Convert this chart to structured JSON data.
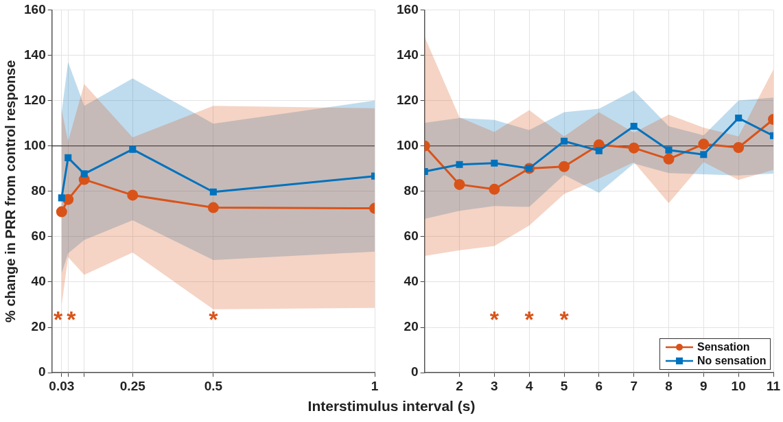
{
  "chart_data": [
    {
      "type": "line",
      "xlabel": "Interstimulus interval (s)",
      "ylabel": "% change in PRR from control response",
      "xlim": [
        0,
        1
      ],
      "xticks": [
        {
          "value": 0.03,
          "label": "0.03"
        },
        {
          "value": 0.05,
          "label": null
        },
        {
          "value": 0.1,
          "label": null
        },
        0.25,
        0.5,
        1
      ],
      "ylim": [
        0,
        160
      ],
      "yticks": [
        0,
        20,
        40,
        60,
        80,
        100,
        120,
        140,
        160
      ],
      "grid": true,
      "legend": false,
      "line_style": "solid",
      "x": [
        0.03,
        0.05,
        0.1,
        0.25,
        0.5,
        1
      ],
      "series": [
        {
          "color": "#d95319",
          "marker": "circle",
          "values": [
            71,
            76.4,
            85.2,
            78.3,
            72.8,
            72.5
          ],
          "lower": [
            29.7,
            51,
            43.2,
            53,
            28,
            28.6
          ],
          "upper": [
            116,
            102,
            127.3,
            103.8,
            117.7,
            116.6
          ]
        },
        {
          "color": "#0072bd",
          "marker": "square",
          "values": [
            77.1,
            94.8,
            87.7,
            98.5,
            79.7,
            86.7
          ],
          "lower": [
            43.8,
            52.6,
            58.5,
            67.2,
            49.7,
            53.4
          ],
          "upper": [
            115,
            137,
            117.7,
            129.8,
            109.8,
            120
          ]
        }
      ],
      "ref_lines": [
        {
          "axis": "y",
          "value": 100,
          "color": "#000000"
        }
      ],
      "annotations": [
        "*",
        "*",
        "*"
      ]
    },
    {
      "type": "line",
      "xlim": [
        1,
        11
      ],
      "xticks": [
        2,
        3,
        4,
        5,
        6,
        7,
        8,
        9,
        10,
        11
      ],
      "ylim": [
        0,
        160
      ],
      "yticks": [
        0,
        20,
        40,
        60,
        80,
        100,
        120,
        140,
        160
      ],
      "grid": true,
      "legend": "bottom right",
      "line_style": "solid",
      "x": [
        1,
        2,
        3,
        4,
        5,
        6,
        7,
        8,
        9,
        10,
        11
      ],
      "series": [
        {
          "name": "Sensation",
          "color": "#d95319",
          "marker": "circle",
          "values": [
            100,
            83,
            80.9,
            90.1,
            90.9,
            100.5,
            99.1,
            94.2,
            100.8,
            99.3,
            111.7
          ],
          "lower": [
            51.5,
            54,
            55.9,
            64.9,
            78.8,
            85.6,
            92.9,
            74.8,
            92.9,
            85,
            89.5
          ],
          "upper": [
            148.2,
            112.6,
            106.2,
            115.8,
            104.2,
            114.9,
            105.9,
            113.8,
            108.1,
            104.2,
            133.7
          ]
        },
        {
          "name": "No sensation",
          "color": "#0072bd",
          "marker": "square",
          "values": [
            88.7,
            91.8,
            92.4,
            90.1,
            102.1,
            97.9,
            108.7,
            98.2,
            96.2,
            112.3,
            104.5
          ],
          "lower": [
            67.8,
            71.4,
            73.5,
            73.1,
            87.2,
            79.3,
            92.3,
            88,
            87.5,
            87,
            87.8
          ],
          "upper": [
            110.2,
            112.3,
            111.5,
            107,
            114.9,
            116.4,
            124.5,
            108.7,
            104.7,
            120,
            121.3
          ]
        }
      ],
      "ref_lines": [
        {
          "axis": "y",
          "value": 100,
          "color": "#000000"
        }
      ],
      "annotations": [
        "*",
        "*",
        "*"
      ]
    }
  ]
}
